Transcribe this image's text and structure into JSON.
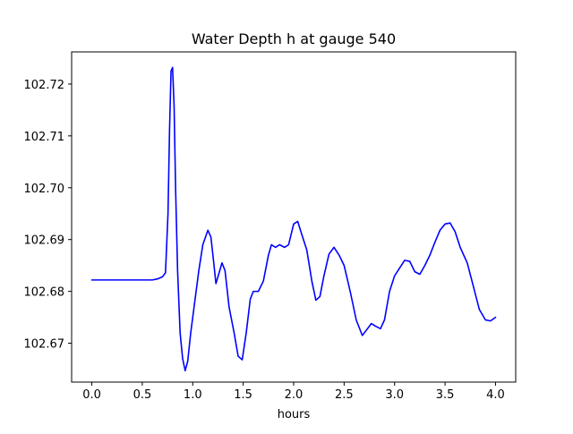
{
  "chart_data": {
    "type": "line",
    "title": "Water Depth h at gauge 540",
    "xlabel": "hours",
    "ylabel": "",
    "xlim": [
      -0.2,
      4.2
    ],
    "ylim": [
      102.6625,
      102.7262
    ],
    "xticks": [
      0.0,
      0.5,
      1.0,
      1.5,
      2.0,
      2.5,
      3.0,
      3.5,
      4.0
    ],
    "xtick_labels": [
      "0.0",
      "0.5",
      "1.0",
      "1.5",
      "2.0",
      "2.5",
      "3.0",
      "3.5",
      "4.0"
    ],
    "yticks": [
      102.67,
      102.68,
      102.69,
      102.7,
      102.71,
      102.72
    ],
    "ytick_labels": [
      "102.67",
      "102.68",
      "102.69",
      "102.70",
      "102.71",
      "102.72"
    ],
    "grid": false,
    "series": [
      {
        "color": "#0000ff",
        "points": [
          [
            0.0,
            102.6822
          ],
          [
            0.3,
            102.6822
          ],
          [
            0.6,
            102.6822
          ],
          [
            0.65,
            102.6824
          ],
          [
            0.7,
            102.6828
          ],
          [
            0.73,
            102.6836
          ],
          [
            0.755,
            102.695
          ],
          [
            0.77,
            102.711
          ],
          [
            0.785,
            102.7225
          ],
          [
            0.8,
            102.7232
          ],
          [
            0.815,
            102.716
          ],
          [
            0.83,
            102.7
          ],
          [
            0.85,
            102.684
          ],
          [
            0.875,
            102.672
          ],
          [
            0.9,
            102.667
          ],
          [
            0.925,
            102.6647
          ],
          [
            0.95,
            102.6665
          ],
          [
            0.98,
            102.672
          ],
          [
            1.02,
            102.678
          ],
          [
            1.06,
            102.684
          ],
          [
            1.1,
            102.689
          ],
          [
            1.15,
            102.6918
          ],
          [
            1.18,
            102.6905
          ],
          [
            1.2,
            102.687
          ],
          [
            1.23,
            102.6815
          ],
          [
            1.26,
            102.6835
          ],
          [
            1.29,
            102.6855
          ],
          [
            1.32,
            102.684
          ],
          [
            1.36,
            102.677
          ],
          [
            1.41,
            102.672
          ],
          [
            1.45,
            102.6675
          ],
          [
            1.49,
            102.6668
          ],
          [
            1.53,
            102.672
          ],
          [
            1.57,
            102.6785
          ],
          [
            1.6,
            102.68
          ],
          [
            1.65,
            102.68
          ],
          [
            1.7,
            102.682
          ],
          [
            1.75,
            102.687
          ],
          [
            1.78,
            102.689
          ],
          [
            1.82,
            102.6885
          ],
          [
            1.86,
            102.689
          ],
          [
            1.91,
            102.6885
          ],
          [
            1.95,
            102.689
          ],
          [
            2.0,
            102.693
          ],
          [
            2.04,
            102.6935
          ],
          [
            2.08,
            102.691
          ],
          [
            2.13,
            102.688
          ],
          [
            2.18,
            102.682
          ],
          [
            2.22,
            102.6783
          ],
          [
            2.26,
            102.679
          ],
          [
            2.3,
            102.683
          ],
          [
            2.35,
            102.6872
          ],
          [
            2.4,
            102.6885
          ],
          [
            2.45,
            102.687
          ],
          [
            2.5,
            102.685
          ],
          [
            2.56,
            102.68
          ],
          [
            2.62,
            102.6745
          ],
          [
            2.68,
            102.6715
          ],
          [
            2.72,
            102.6725
          ],
          [
            2.77,
            102.6738
          ],
          [
            2.81,
            102.6733
          ],
          [
            2.86,
            102.6728
          ],
          [
            2.9,
            102.6745
          ],
          [
            2.95,
            102.68
          ],
          [
            3.0,
            102.683
          ],
          [
            3.05,
            102.6845
          ],
          [
            3.1,
            102.686
          ],
          [
            3.15,
            102.6858
          ],
          [
            3.2,
            102.6838
          ],
          [
            3.25,
            102.6833
          ],
          [
            3.3,
            102.685
          ],
          [
            3.35,
            102.687
          ],
          [
            3.4,
            102.6895
          ],
          [
            3.45,
            102.6918
          ],
          [
            3.5,
            102.693
          ],
          [
            3.55,
            102.6932
          ],
          [
            3.6,
            102.6915
          ],
          [
            3.65,
            102.6885
          ],
          [
            3.72,
            102.6855
          ],
          [
            3.78,
            102.681
          ],
          [
            3.84,
            102.6765
          ],
          [
            3.9,
            102.6745
          ],
          [
            3.95,
            102.6743
          ],
          [
            4.0,
            102.675
          ]
        ]
      }
    ]
  }
}
